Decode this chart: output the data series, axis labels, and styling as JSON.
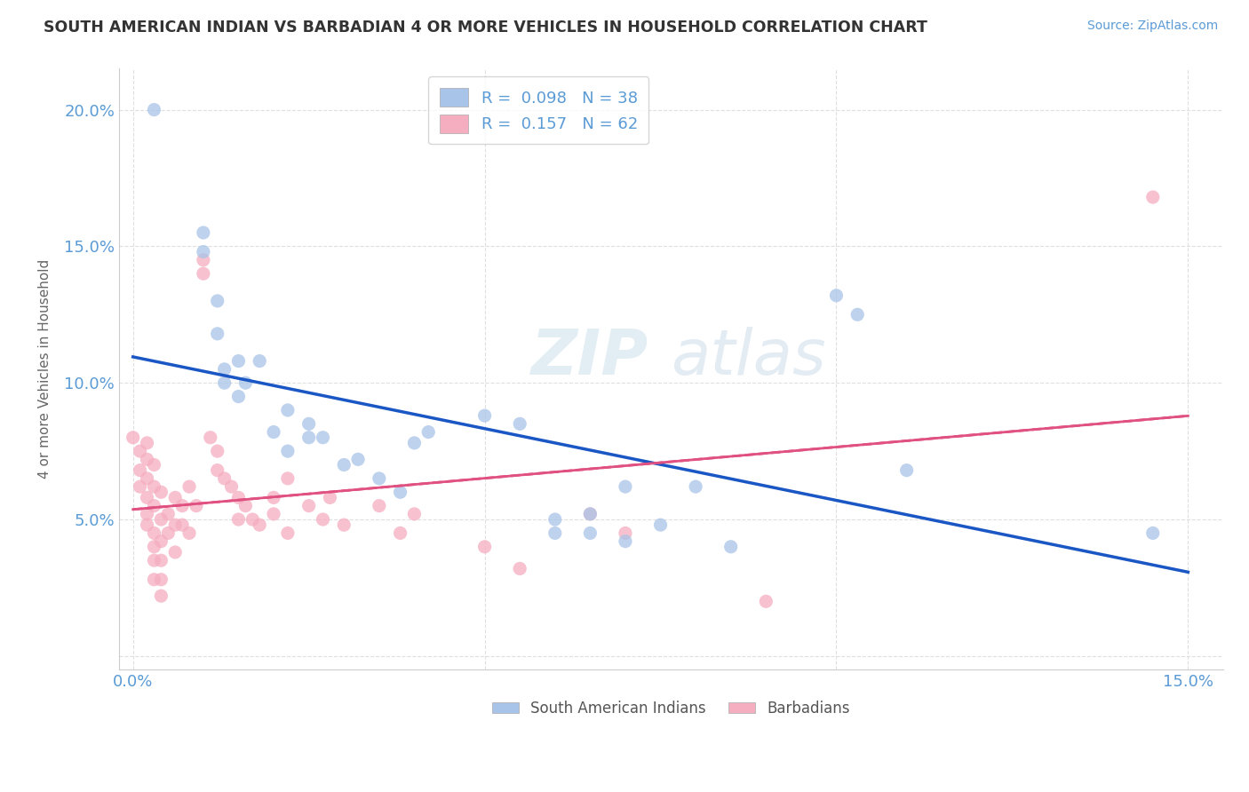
{
  "title": "SOUTH AMERICAN INDIAN VS BARBADIAN 4 OR MORE VEHICLES IN HOUSEHOLD CORRELATION CHART",
  "source_text": "Source: ZipAtlas.com",
  "ylabel": "4 or more Vehicles in Household",
  "xlim": [
    -0.002,
    0.155
  ],
  "ylim": [
    -0.005,
    0.215
  ],
  "r_blue": 0.098,
  "n_blue": 38,
  "r_pink": 0.157,
  "n_pink": 62,
  "blue_color": "#a8c4e8",
  "pink_color": "#f5adc0",
  "trendline_blue": "#1a56c4",
  "trendline_pink": "#e05080",
  "background_color": "#ffffff",
  "grid_color": "#d8d8d8",
  "legend_labels": [
    "South American Indians",
    "Barbadians"
  ],
  "blue_scatter": [
    [
      0.003,
      0.2
    ],
    [
      0.01,
      0.155
    ],
    [
      0.01,
      0.148
    ],
    [
      0.012,
      0.13
    ],
    [
      0.012,
      0.118
    ],
    [
      0.013,
      0.105
    ],
    [
      0.013,
      0.1
    ],
    [
      0.015,
      0.108
    ],
    [
      0.015,
      0.095
    ],
    [
      0.016,
      0.1
    ],
    [
      0.018,
      0.108
    ],
    [
      0.02,
      0.082
    ],
    [
      0.022,
      0.09
    ],
    [
      0.022,
      0.075
    ],
    [
      0.025,
      0.085
    ],
    [
      0.025,
      0.08
    ],
    [
      0.027,
      0.08
    ],
    [
      0.03,
      0.07
    ],
    [
      0.032,
      0.072
    ],
    [
      0.035,
      0.065
    ],
    [
      0.038,
      0.06
    ],
    [
      0.04,
      0.078
    ],
    [
      0.042,
      0.082
    ],
    [
      0.05,
      0.088
    ],
    [
      0.055,
      0.085
    ],
    [
      0.06,
      0.05
    ],
    [
      0.06,
      0.045
    ],
    [
      0.065,
      0.052
    ],
    [
      0.065,
      0.045
    ],
    [
      0.07,
      0.062
    ],
    [
      0.07,
      0.042
    ],
    [
      0.075,
      0.048
    ],
    [
      0.08,
      0.062
    ],
    [
      0.085,
      0.04
    ],
    [
      0.1,
      0.132
    ],
    [
      0.103,
      0.125
    ],
    [
      0.11,
      0.068
    ],
    [
      0.145,
      0.045
    ]
  ],
  "pink_scatter": [
    [
      0.0,
      0.08
    ],
    [
      0.001,
      0.075
    ],
    [
      0.001,
      0.068
    ],
    [
      0.001,
      0.062
    ],
    [
      0.002,
      0.078
    ],
    [
      0.002,
      0.072
    ],
    [
      0.002,
      0.065
    ],
    [
      0.002,
      0.058
    ],
    [
      0.002,
      0.052
    ],
    [
      0.002,
      0.048
    ],
    [
      0.003,
      0.07
    ],
    [
      0.003,
      0.062
    ],
    [
      0.003,
      0.055
    ],
    [
      0.003,
      0.045
    ],
    [
      0.003,
      0.04
    ],
    [
      0.003,
      0.035
    ],
    [
      0.003,
      0.028
    ],
    [
      0.004,
      0.06
    ],
    [
      0.004,
      0.05
    ],
    [
      0.004,
      0.042
    ],
    [
      0.004,
      0.035
    ],
    [
      0.004,
      0.028
    ],
    [
      0.004,
      0.022
    ],
    [
      0.005,
      0.052
    ],
    [
      0.005,
      0.045
    ],
    [
      0.006,
      0.058
    ],
    [
      0.006,
      0.048
    ],
    [
      0.006,
      0.038
    ],
    [
      0.007,
      0.055
    ],
    [
      0.007,
      0.048
    ],
    [
      0.008,
      0.062
    ],
    [
      0.008,
      0.045
    ],
    [
      0.009,
      0.055
    ],
    [
      0.01,
      0.145
    ],
    [
      0.01,
      0.14
    ],
    [
      0.011,
      0.08
    ],
    [
      0.012,
      0.075
    ],
    [
      0.012,
      0.068
    ],
    [
      0.013,
      0.065
    ],
    [
      0.014,
      0.062
    ],
    [
      0.015,
      0.058
    ],
    [
      0.015,
      0.05
    ],
    [
      0.016,
      0.055
    ],
    [
      0.017,
      0.05
    ],
    [
      0.018,
      0.048
    ],
    [
      0.02,
      0.058
    ],
    [
      0.02,
      0.052
    ],
    [
      0.022,
      0.065
    ],
    [
      0.022,
      0.045
    ],
    [
      0.025,
      0.055
    ],
    [
      0.027,
      0.05
    ],
    [
      0.028,
      0.058
    ],
    [
      0.03,
      0.048
    ],
    [
      0.035,
      0.055
    ],
    [
      0.038,
      0.045
    ],
    [
      0.04,
      0.052
    ],
    [
      0.05,
      0.04
    ],
    [
      0.055,
      0.032
    ],
    [
      0.065,
      0.052
    ],
    [
      0.07,
      0.045
    ],
    [
      0.09,
      0.02
    ],
    [
      0.145,
      0.168
    ]
  ]
}
